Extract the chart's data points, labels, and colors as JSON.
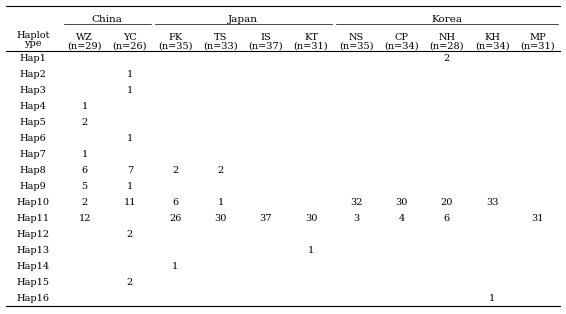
{
  "haplotypes": [
    "Hap1",
    "Hap2",
    "Hap3",
    "Hap4",
    "Hap5",
    "Hap6",
    "Hap7",
    "Hap8",
    "Hap9",
    "Hap10",
    "Hap11",
    "Hap12",
    "Hap13",
    "Hap14",
    "Hap15",
    "Hap16"
  ],
  "pop_labels": [
    "WZ",
    "YC",
    "FK",
    "TS",
    "IS",
    "KT",
    "NS",
    "CP",
    "NH",
    "KH",
    "MP"
  ],
  "pop_n": [
    "(n=29)",
    "(n=26)",
    "(n=35)",
    "(n=33)",
    "(n=37)",
    "(n=31)",
    "(n=35)",
    "(n=34)",
    "(n=28)",
    "(n=34)",
    "(n=31)"
  ],
  "groups": [
    {
      "name": "China",
      "cols": [
        0,
        1
      ]
    },
    {
      "name": "Japan",
      "cols": [
        2,
        3,
        4,
        5
      ]
    },
    {
      "name": "Korea",
      "cols": [
        6,
        7,
        8,
        9,
        10
      ]
    }
  ],
  "data": {
    "Hap1": [
      "",
      "",
      "",
      "",
      "",
      "",
      "",
      "",
      "2",
      "",
      ""
    ],
    "Hap2": [
      "",
      "1",
      "",
      "",
      "",
      "",
      "",
      "",
      "",
      "",
      ""
    ],
    "Hap3": [
      "",
      "1",
      "",
      "",
      "",
      "",
      "",
      "",
      "",
      "",
      ""
    ],
    "Hap4": [
      "1",
      "",
      "",
      "",
      "",
      "",
      "",
      "",
      "",
      "",
      ""
    ],
    "Hap5": [
      "2",
      "",
      "",
      "",
      "",
      "",
      "",
      "",
      "",
      "",
      ""
    ],
    "Hap6": [
      "",
      "1",
      "",
      "",
      "",
      "",
      "",
      "",
      "",
      "",
      ""
    ],
    "Hap7": [
      "1",
      "",
      "",
      "",
      "",
      "",
      "",
      "",
      "",
      "",
      ""
    ],
    "Hap8": [
      "6",
      "7",
      "2",
      "2",
      "",
      "",
      "",
      "",
      "",
      "",
      ""
    ],
    "Hap9": [
      "5",
      "1",
      "",
      "",
      "",
      "",
      "",
      "",
      "",
      "",
      ""
    ],
    "Hap10": [
      "2",
      "11",
      "6",
      "1",
      "",
      "",
      "32",
      "30",
      "20",
      "33",
      ""
    ],
    "Hap11": [
      "12",
      "",
      "26",
      "30",
      "37",
      "30",
      "3",
      "4",
      "6",
      "",
      "31"
    ],
    "Hap12": [
      "",
      "2",
      "",
      "",
      "",
      "",
      "",
      "",
      "",
      "",
      ""
    ],
    "Hap13": [
      "",
      "",
      "",
      "",
      "",
      "1",
      "",
      "",
      "",
      "",
      ""
    ],
    "Hap14": [
      "",
      "",
      "1",
      "",
      "",
      "",
      "",
      "",
      "",
      "",
      ""
    ],
    "Hap15": [
      "",
      "2",
      "",
      "",
      "",
      "",
      "",
      "",
      "",
      "",
      ""
    ],
    "Hap16": [
      "",
      "",
      "",
      "",
      "",
      "",
      "",
      "",
      "",
      "1",
      ""
    ]
  },
  "font_size": 7.0,
  "bg_color": "#ffffff",
  "line_color": "#000000"
}
